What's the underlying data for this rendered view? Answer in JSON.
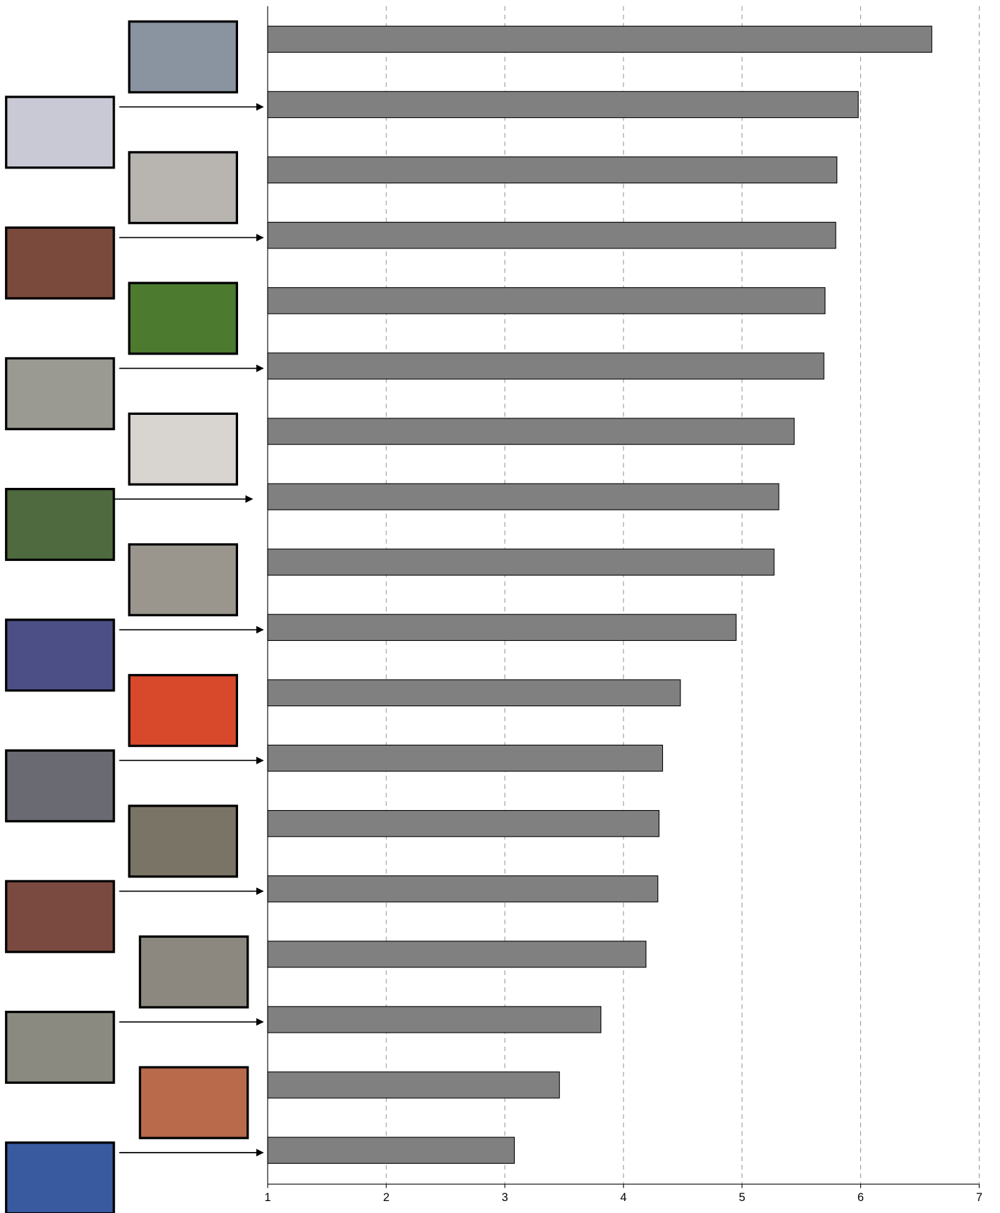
{
  "chart_data": {
    "type": "bar",
    "orientation": "horizontal",
    "categories": [
      null,
      null,
      null,
      null,
      null,
      null,
      null,
      null,
      null,
      null,
      null,
      null,
      null,
      null,
      null,
      null,
      null,
      null
    ],
    "values": [
      6.6,
      5.98,
      5.8,
      5.79,
      5.7,
      5.69,
      5.44,
      5.31,
      5.27,
      4.95,
      4.48,
      4.33,
      4.3,
      4.29,
      4.19,
      3.81,
      3.46,
      3.08
    ],
    "color": "#808080",
    "xlim": [
      1,
      7
    ],
    "xticks": [
      1,
      2,
      3,
      4,
      5,
      6,
      7
    ],
    "grid": true
  }
}
